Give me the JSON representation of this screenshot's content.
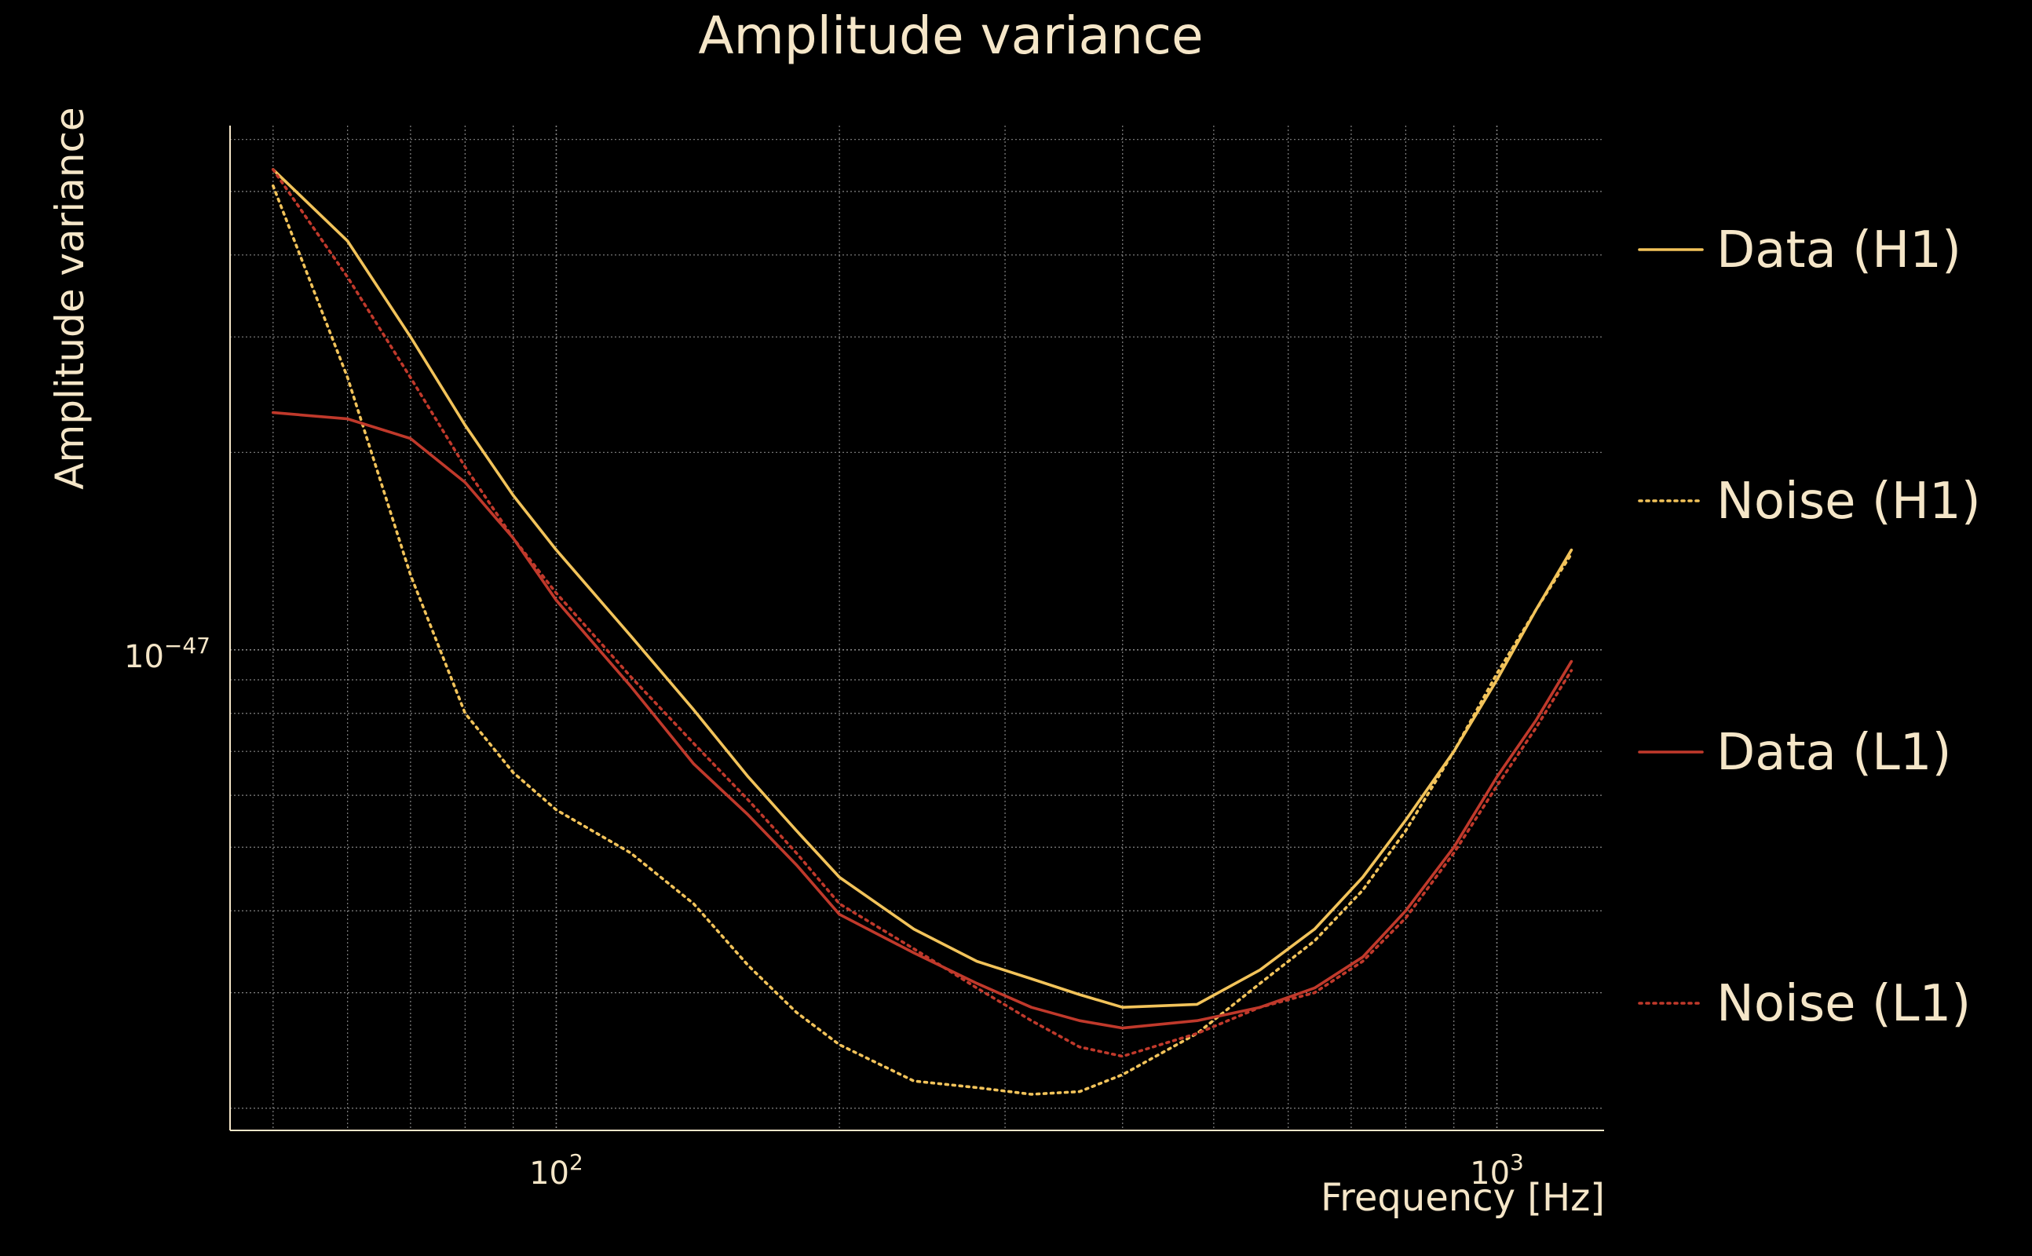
{
  "chart_data": {
    "type": "line",
    "title": "Amplitude variance",
    "xlabel": "Frequency [Hz]",
    "ylabel": "Amplitude variance",
    "x_scale": "log",
    "y_scale": "log",
    "xlim": [
      45,
      1300
    ],
    "ylim": [
      1.85e-48,
      6.3e-47
    ],
    "x_ticks": [
      {
        "value": 100,
        "base": "10",
        "exp": "2"
      },
      {
        "value": 1000,
        "base": "10",
        "exp": "3"
      }
    ],
    "y_ticks": [
      {
        "value": 1e-47,
        "base": "10",
        "exp": "−47"
      }
    ],
    "grid": true,
    "legend_position": "right",
    "colors": {
      "background": "#000000",
      "text": "#f5e6c8",
      "grid": "#9a9a9a",
      "h1": "#f2c35a",
      "l1": "#c0392b"
    },
    "x": [
      50,
      60,
      70,
      80,
      90,
      100,
      120,
      140,
      160,
      180,
      200,
      240,
      280,
      320,
      360,
      400,
      480,
      560,
      640,
      720,
      800,
      900,
      1000,
      1100,
      1200
    ],
    "series": [
      {
        "name": "Data (H1)",
        "style": "solid",
        "color": "#f2c35a",
        "values": [
          5.4e-47,
          4.2e-47,
          3e-47,
          2.2e-47,
          1.72e-47,
          1.42e-47,
          1.05e-47,
          8.1e-48,
          6.4e-48,
          5.3e-48,
          4.5e-48,
          3.75e-48,
          3.35e-48,
          3.15e-48,
          2.98e-48,
          2.85e-48,
          2.88e-48,
          3.25e-48,
          3.75e-48,
          4.5e-48,
          5.5e-48,
          7e-48,
          9e-48,
          1.15e-47,
          1.42e-47
        ]
      },
      {
        "name": "Noise (H1)",
        "style": "dotted",
        "color": "#f2c35a",
        "values": [
          5.1e-47,
          2.6e-47,
          1.3e-47,
          8e-48,
          6.5e-48,
          5.7e-48,
          4.9e-48,
          4.1e-48,
          3.3e-48,
          2.8e-48,
          2.5e-48,
          2.2e-48,
          2.15e-48,
          2.1e-48,
          2.12e-48,
          2.25e-48,
          2.6e-48,
          3.1e-48,
          3.6e-48,
          4.3e-48,
          5.3e-48,
          7e-48,
          9.2e-48,
          1.15e-47,
          1.4e-47
        ]
      },
      {
        "name": "Data (L1)",
        "style": "solid",
        "color": "#c0392b",
        "values": [
          2.3e-47,
          2.25e-47,
          2.1e-47,
          1.8e-47,
          1.48e-47,
          1.19e-47,
          8.8e-48,
          6.7e-48,
          5.6e-48,
          4.7e-48,
          3.95e-48,
          3.45e-48,
          3.1e-48,
          2.85e-48,
          2.72e-48,
          2.65e-48,
          2.72e-48,
          2.85e-48,
          3.05e-48,
          3.4e-48,
          4e-48,
          5e-48,
          6.4e-48,
          7.8e-48,
          9.6e-48
        ]
      },
      {
        "name": "Noise (L1)",
        "style": "dotted",
        "color": "#c0392b",
        "values": [
          5.4e-47,
          3.7e-47,
          2.6e-47,
          1.9e-47,
          1.48e-47,
          1.22e-47,
          9.1e-48,
          7.2e-48,
          5.9e-48,
          4.9e-48,
          4.1e-48,
          3.5e-48,
          3.05e-48,
          2.72e-48,
          2.48e-48,
          2.4e-48,
          2.6e-48,
          2.85e-48,
          3e-48,
          3.35e-48,
          3.9e-48,
          4.9e-48,
          6.2e-48,
          7.6e-48,
          9.3e-48
        ]
      }
    ]
  }
}
